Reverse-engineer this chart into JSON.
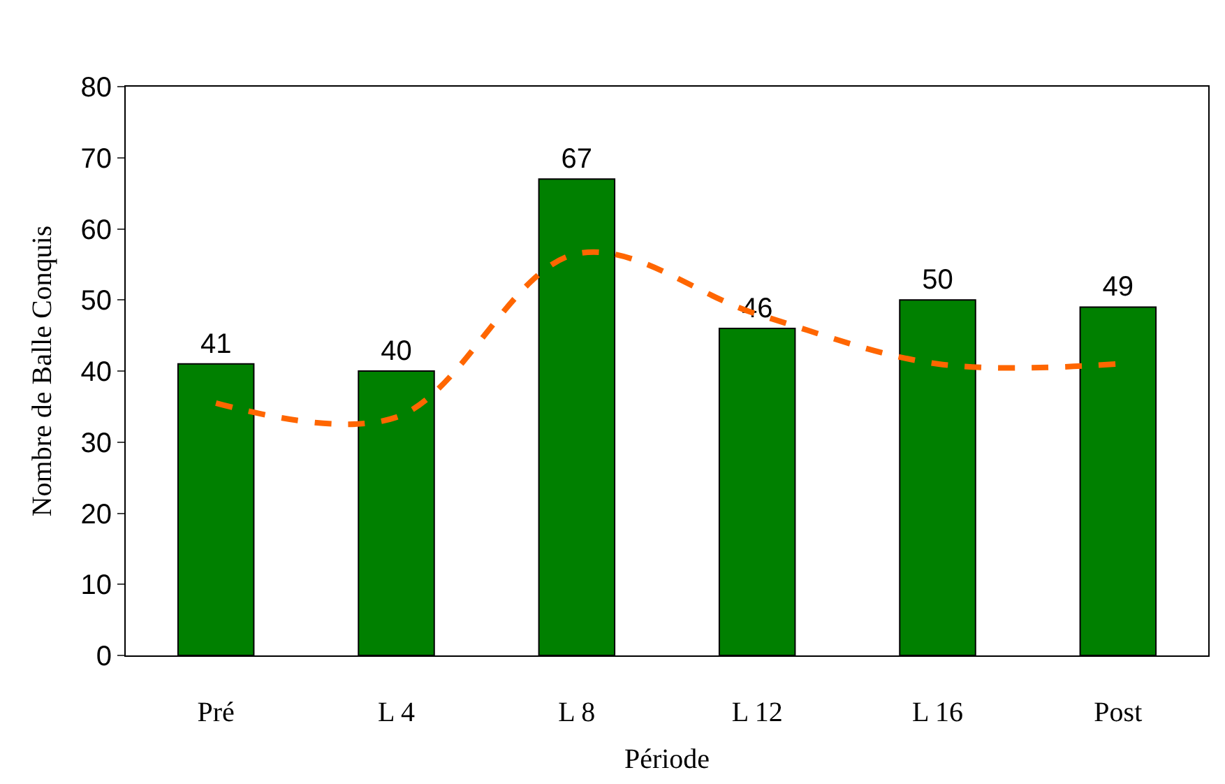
{
  "chart_data": {
    "type": "bar",
    "xlabel": "Période",
    "ylabel": "Nombre de Balle Conquis",
    "categories": [
      "Pré",
      "L 4",
      "L 8",
      "L 12",
      "L 16",
      "Post"
    ],
    "ylim": [
      0,
      80
    ],
    "yticks": [
      0,
      10,
      20,
      30,
      40,
      50,
      60,
      70,
      80
    ],
    "series": [
      {
        "color": "#008000",
        "values": [
          41,
          40,
          67,
          46,
          50,
          49
        ],
        "value_labels": [
          "41",
          "40",
          "67",
          "46",
          "50",
          "49"
        ]
      },
      {
        "type": "line",
        "color": "#ff6600",
        "line_style": "dashed",
        "marker": "none",
        "values": [
          35.5,
          33.5,
          56.5,
          48,
          41,
          41
        ]
      }
    ]
  }
}
